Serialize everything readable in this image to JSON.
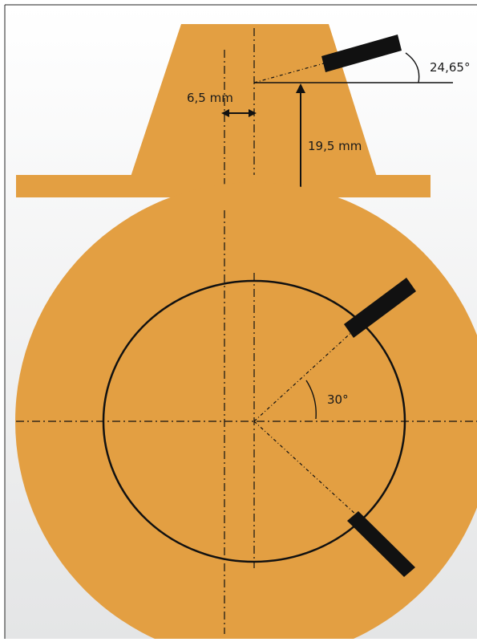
{
  "colors": {
    "part_fill": "#e39f42",
    "line": "#111111",
    "background_top": "#ffffff",
    "background_bottom": "#e4e5e6"
  },
  "annotations": {
    "offset": "6,5 mm",
    "height": "19,5 mm",
    "tilt_angle": "24,65°",
    "spacing_angle": "30°"
  },
  "icons": {
    "sensor": "black-rectangle-sensor"
  }
}
